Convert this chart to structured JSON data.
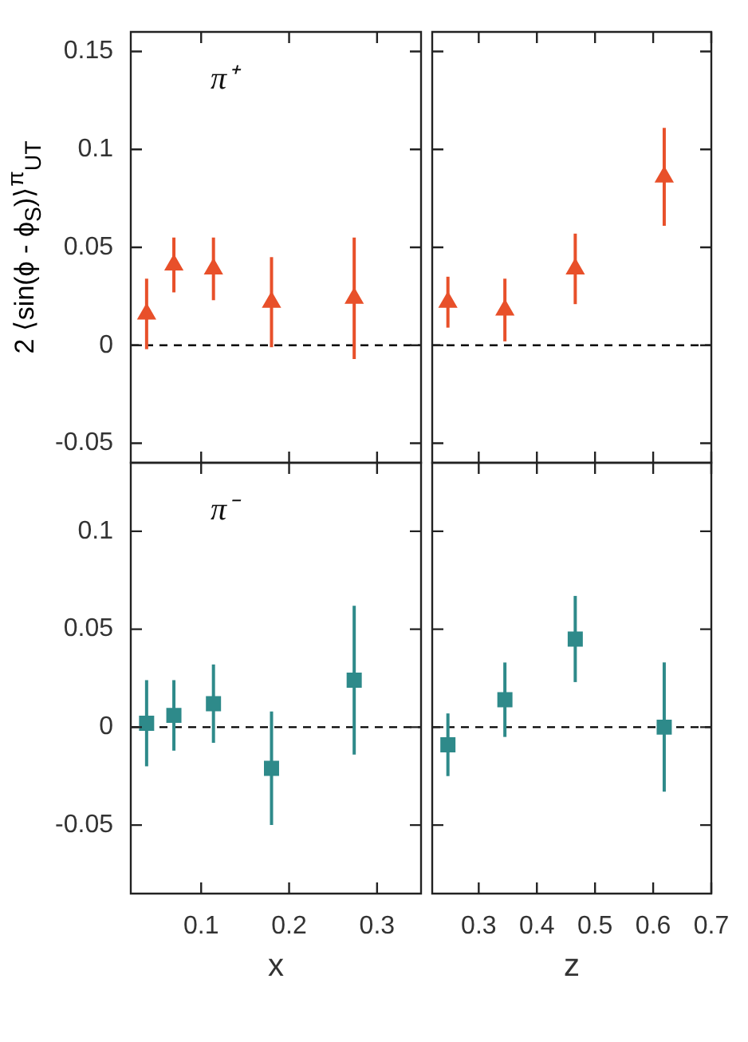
{
  "chart_data": [
    {
      "type": "scatter",
      "ylabel": "2 ⟨sin(ϕ - ϕ$_{S}$)⟩$^{π}$$_{UT}$",
      "annotations": [
        "π⁺"
      ],
      "marker": "triangle",
      "tick_labels": "y",
      "x": [
        0.038,
        0.069,
        0.114,
        0.18,
        0.274
      ],
      "xlim": [
        0.02,
        0.35
      ],
      "xticks": [
        0.1,
        0.2,
        0.3
      ],
      "series": [
        {
          "color": "#e8502a",
          "values": [
            0.016,
            0.041,
            0.039,
            0.022,
            0.024
          ],
          "errors": [
            0.018,
            0.014,
            0.016,
            0.023,
            0.031
          ]
        }
      ],
      "ylim": [
        -0.06,
        0.16
      ],
      "yticks": [
        -0.05,
        0,
        0.05,
        0.1,
        0.15
      ],
      "ref_lines": [
        {
          "axis": "y",
          "value": 0,
          "color": "#000000",
          "line_style": "dashed"
        }
      ]
    },
    {
      "type": "scatter",
      "marker": "triangle",
      "tick_labels": false,
      "x": [
        0.247,
        0.345,
        0.466,
        0.619
      ],
      "xlim": [
        0.22,
        0.7
      ],
      "xticks": [
        0.3,
        0.4,
        0.5,
        0.6,
        0.7
      ],
      "series": [
        {
          "color": "#e8502a",
          "values": [
            0.022,
            0.018,
            0.039,
            0.086
          ],
          "errors": [
            0.013,
            0.016,
            0.018,
            0.025
          ]
        }
      ],
      "ylim": [
        -0.06,
        0.16
      ],
      "yticks": [
        -0.05,
        0,
        0.05,
        0.1,
        0.15
      ],
      "ref_lines": [
        {
          "axis": "y",
          "value": 0,
          "color": "#000000",
          "line_style": "dashed"
        }
      ]
    },
    {
      "type": "scatter",
      "xlabel": "x",
      "annotations": [
        "π⁻"
      ],
      "marker": "square",
      "x": [
        0.038,
        0.069,
        0.114,
        0.18,
        0.274
      ],
      "xlim": [
        0.02,
        0.35
      ],
      "xticks": [
        0.1,
        0.2,
        0.3
      ],
      "series": [
        {
          "color": "#2e8a8a",
          "values": [
            0.002,
            0.006,
            0.012,
            -0.021,
            0.024
          ],
          "errors": [
            0.022,
            0.018,
            0.02,
            0.029,
            0.038
          ]
        }
      ],
      "ylim": [
        -0.085,
        0.135
      ],
      "yticks": [
        -0.05,
        0,
        0.05,
        0.1
      ],
      "ref_lines": [
        {
          "axis": "y",
          "value": 0,
          "color": "#000000",
          "line_style": "dashed"
        }
      ]
    },
    {
      "type": "scatter",
      "xlabel": "z",
      "marker": "square",
      "tick_labels": "x",
      "x": [
        0.247,
        0.345,
        0.466,
        0.619
      ],
      "xlim": [
        0.22,
        0.7
      ],
      "xticks": [
        0.3,
        0.4,
        0.5,
        0.6,
        0.7
      ],
      "series": [
        {
          "color": "#2e8a8a",
          "values": [
            -0.009,
            0.014,
            0.045,
            0.0
          ],
          "errors": [
            0.016,
            0.019,
            0.022,
            0.033
          ]
        }
      ],
      "ylim": [
        -0.085,
        0.135
      ],
      "yticks": [
        -0.05,
        0,
        0.05,
        0.1
      ],
      "ref_lines": [
        {
          "axis": "y",
          "value": 0,
          "color": "#000000",
          "line_style": "dashed"
        }
      ]
    }
  ]
}
